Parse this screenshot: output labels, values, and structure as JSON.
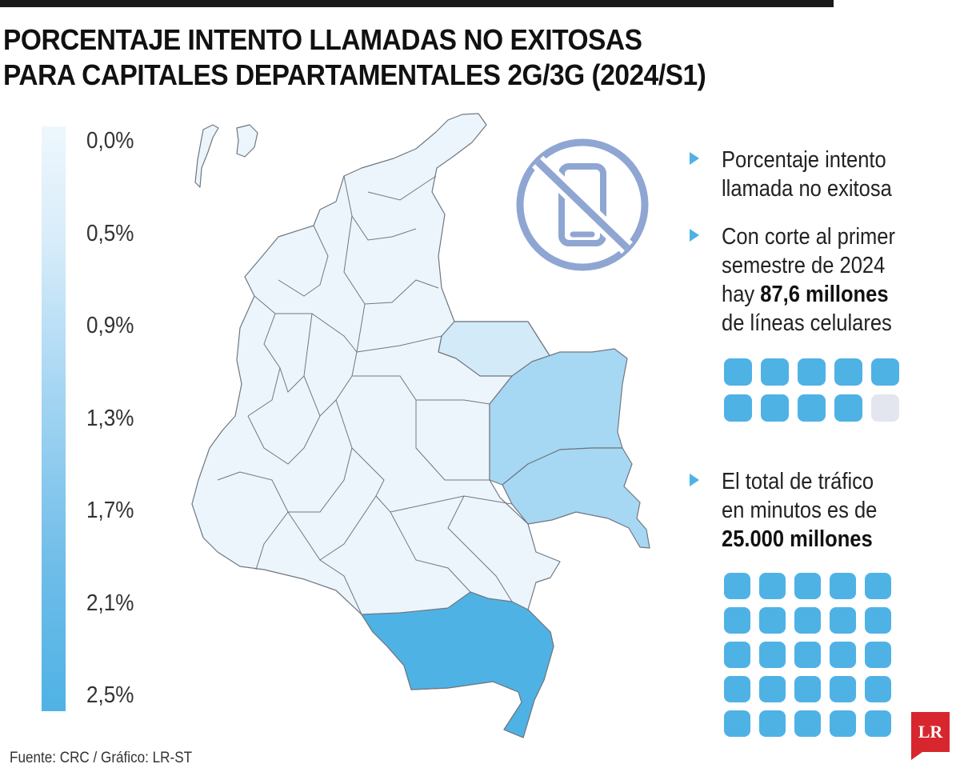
{
  "title": {
    "line1": "PORCENTAJE INTENTO LLAMADAS NO EXITOSAS",
    "line2": "PARA CAPITALES DEPARTAMENTALES 2G/3G (2024/S1)"
  },
  "legend": {
    "ticks": [
      "0,0%",
      "0,5%",
      "0,9%",
      "1,3%",
      "1,7%",
      "2,1%",
      "2,5%"
    ],
    "gradient_colors": [
      "#eef7fd",
      "#d7ecf9",
      "#a6d6f3",
      "#6fbde9",
      "#4fb2e5"
    ]
  },
  "map": {
    "icon": "no-phone-icon",
    "colors": {
      "base": "#edf5fc",
      "light": "#d3eaf8",
      "medium": "#a7d8f3",
      "dark": "#4fb2e5",
      "border": "#6f7780"
    }
  },
  "info": {
    "item1": {
      "line1": "Porcentaje intento",
      "line2": "llamada no exitosa"
    },
    "item2": {
      "line1": "Con corte al primer",
      "line2": "semestre de 2024",
      "line3_pre": "hay ",
      "line3_bold": "87,6 millones",
      "line4": "de líneas celulares"
    },
    "item3": {
      "line1": "El total de tráfico",
      "line2": "en minutos es de",
      "line3_bold": "25.000 millones"
    }
  },
  "pictograms": {
    "lines_filled": 9,
    "lines_total": 10,
    "traffic_filled": 25,
    "traffic_total": 25,
    "filled_color": "#4fb2e5",
    "empty_color": "#e3e6ef"
  },
  "source": "Fuente: CRC / Gráfico: LR-ST",
  "logo": "LR"
}
